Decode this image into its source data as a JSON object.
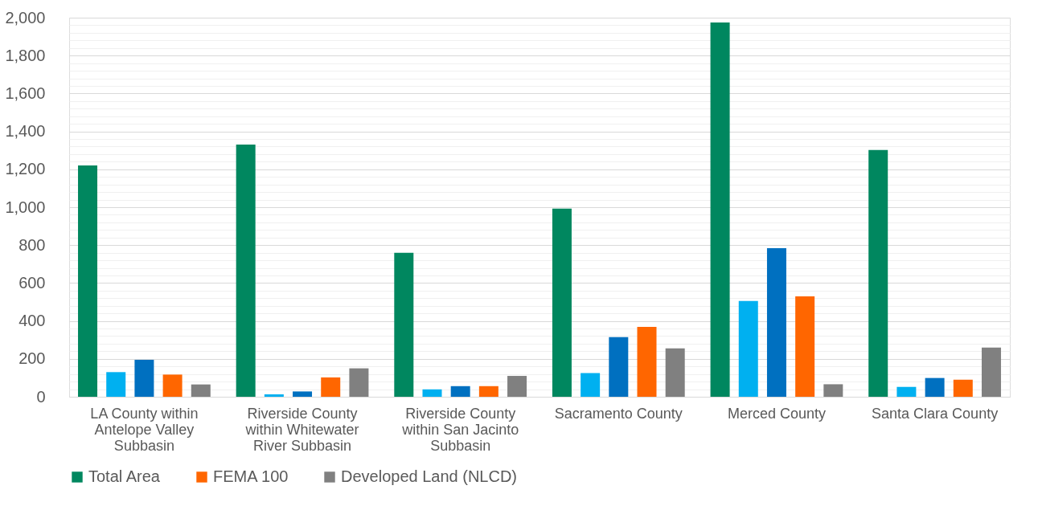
{
  "chart_data": {
    "type": "bar",
    "categories": [
      "LA County within Antelope Valley Subbasin",
      "Riverside County within Whitewater River Subbasin",
      "Riverside County within San Jacinto Subbasin",
      "Sacramento County",
      "Merced County",
      "Santa Clara County"
    ],
    "series": [
      {
        "name": "Total Area",
        "color": "#00875f",
        "values": [
          1220,
          1330,
          760,
          993,
          1975,
          1302
        ]
      },
      {
        "color": "#00b0f0",
        "values": [
          130,
          13,
          39,
          125,
          505,
          52
        ]
      },
      {
        "color": "#0070c0",
        "values": [
          195,
          28,
          56,
          315,
          784,
          99
        ]
      },
      {
        "name": "FEMA 100",
        "color": "#ff6600",
        "values": [
          117,
          102,
          56,
          369,
          530,
          90
        ]
      },
      {
        "name": "Developed Land (NLCD)",
        "color": "#808080",
        "values": [
          65,
          150,
          110,
          255,
          66,
          260
        ]
      }
    ],
    "ylim": [
      0,
      2000
    ],
    "yticks": [
      0,
      {
        "value": 40,
        "label": null
      },
      {
        "value": 80,
        "label": null
      },
      {
        "value": 120,
        "label": null
      },
      {
        "value": 160,
        "label": null
      },
      {
        "value": 200,
        "label": "200"
      },
      {
        "value": 240,
        "label": null
      },
      {
        "value": 280,
        "label": null
      },
      {
        "value": 320,
        "label": null
      },
      {
        "value": 360,
        "label": null
      },
      {
        "value": 400,
        "label": "400"
      },
      {
        "value": 440,
        "label": null
      },
      {
        "value": 480,
        "label": null
      },
      {
        "value": 520,
        "label": null
      },
      {
        "value": 560,
        "label": null
      },
      {
        "value": 600,
        "label": "600"
      },
      {
        "value": 640,
        "label": null
      },
      {
        "value": 680,
        "label": null
      },
      {
        "value": 720,
        "label": null
      },
      {
        "value": 760,
        "label": null
      },
      {
        "value": 800,
        "label": "800"
      },
      {
        "value": 840,
        "label": null
      },
      {
        "value": 880,
        "label": null
      },
      {
        "value": 920,
        "label": null
      },
      {
        "value": 960,
        "label": null
      },
      {
        "value": 1000,
        "label": "1,000"
      },
      {
        "value": 1040,
        "label": null
      },
      {
        "value": 1080,
        "label": null
      },
      {
        "value": 1120,
        "label": null
      },
      {
        "value": 1160,
        "label": null
      },
      {
        "value": 1200,
        "label": "1,200"
      },
      {
        "value": 1240,
        "label": null
      },
      {
        "value": 1280,
        "label": null
      },
      {
        "value": 1320,
        "label": null
      },
      {
        "value": 1360,
        "label": null
      },
      {
        "value": 1400,
        "label": "1,400"
      },
      {
        "value": 1440,
        "label": null
      },
      {
        "value": 1480,
        "label": null
      },
      {
        "value": 1520,
        "label": null
      },
      {
        "value": 1560,
        "label": null
      },
      {
        "value": 1600,
        "label": "1,600"
      },
      {
        "value": 1640,
        "label": null
      },
      {
        "value": 1680,
        "label": null
      },
      {
        "value": 1720,
        "label": null
      },
      {
        "value": 1760,
        "label": null
      },
      {
        "value": 1800,
        "label": "1,800"
      },
      {
        "value": 1840,
        "label": null
      },
      {
        "value": 1880,
        "label": null
      },
      {
        "value": 1920,
        "label": null
      },
      {
        "value": 1960,
        "label": null
      },
      {
        "value": 2000,
        "label": "2,000"
      }
    ],
    "grid": true,
    "legend": "bottom"
  }
}
